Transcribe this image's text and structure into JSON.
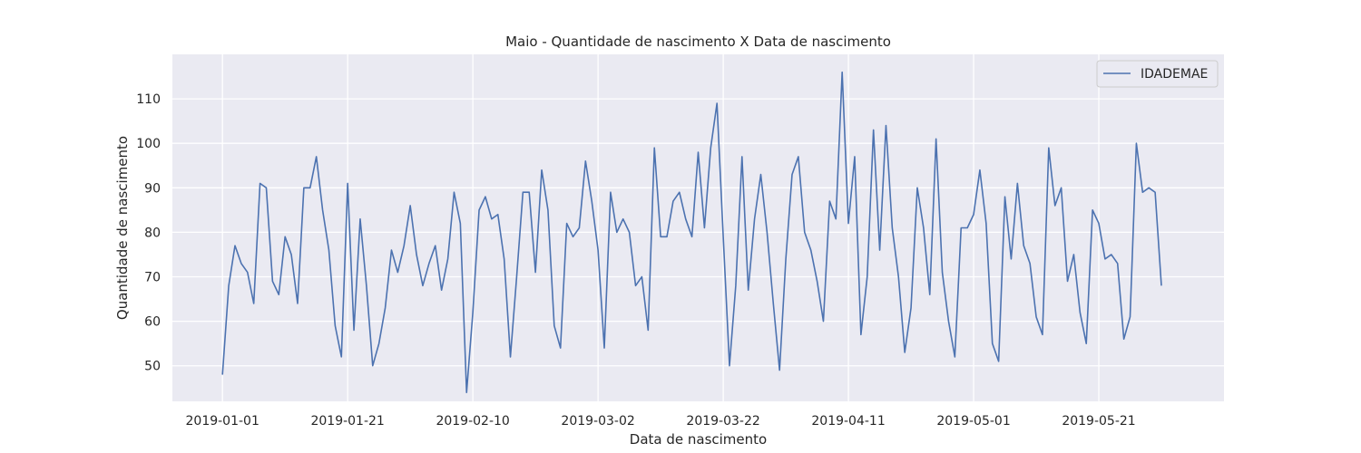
{
  "chart_data": {
    "type": "line",
    "title": "Maio - Quantidade de nascimento X Data de nascimento",
    "xlabel": "Data de nascimento",
    "ylabel": "Quantidade de nascimento",
    "x_start": "2019-01-01",
    "x_ticks": [
      "2019-01-01",
      "2019-01-21",
      "2019-02-10",
      "2019-03-02",
      "2019-03-22",
      "2019-04-11",
      "2019-05-01",
      "2019-05-21"
    ],
    "y_ticks": [
      50,
      60,
      70,
      80,
      90,
      100,
      110
    ],
    "xlim": [
      "2018-12-24",
      "2019-06-10"
    ],
    "ylim": [
      42,
      120
    ],
    "grid": true,
    "legend": "top-right",
    "background": "#eaeaf2",
    "series": [
      {
        "name": "IDADEMAE",
        "color": "#4c72b0",
        "values": [
          48,
          68,
          77,
          73,
          71,
          64,
          91,
          90,
          69,
          66,
          79,
          75,
          64,
          90,
          90,
          97,
          85,
          76,
          59,
          52,
          91,
          58,
          83,
          68,
          50,
          55,
          63,
          76,
          71,
          77,
          86,
          75,
          68,
          73,
          77,
          67,
          74,
          89,
          82,
          44,
          62,
          85,
          88,
          83,
          84,
          74,
          52,
          70,
          89,
          89,
          71,
          94,
          85,
          59,
          54,
          82,
          79,
          81,
          96,
          87,
          76,
          54,
          89,
          80,
          83,
          80,
          68,
          70,
          58,
          99,
          79,
          79,
          87,
          89,
          83,
          79,
          98,
          81,
          99,
          109,
          79,
          50,
          68,
          97,
          67,
          83,
          93,
          80,
          64,
          49,
          74,
          93,
          97,
          80,
          76,
          69,
          60,
          87,
          83,
          116,
          82,
          97,
          57,
          70,
          103,
          76,
          104,
          81,
          70,
          53,
          63,
          90,
          81,
          66,
          101,
          71,
          60,
          52,
          81,
          81,
          84,
          94,
          82,
          55,
          51,
          88,
          74,
          91,
          77,
          73,
          61,
          57,
          99,
          86,
          90,
          69,
          75,
          62,
          55,
          85,
          82,
          74,
          75,
          73,
          56,
          61,
          100,
          89,
          90,
          89,
          68
        ]
      }
    ]
  }
}
